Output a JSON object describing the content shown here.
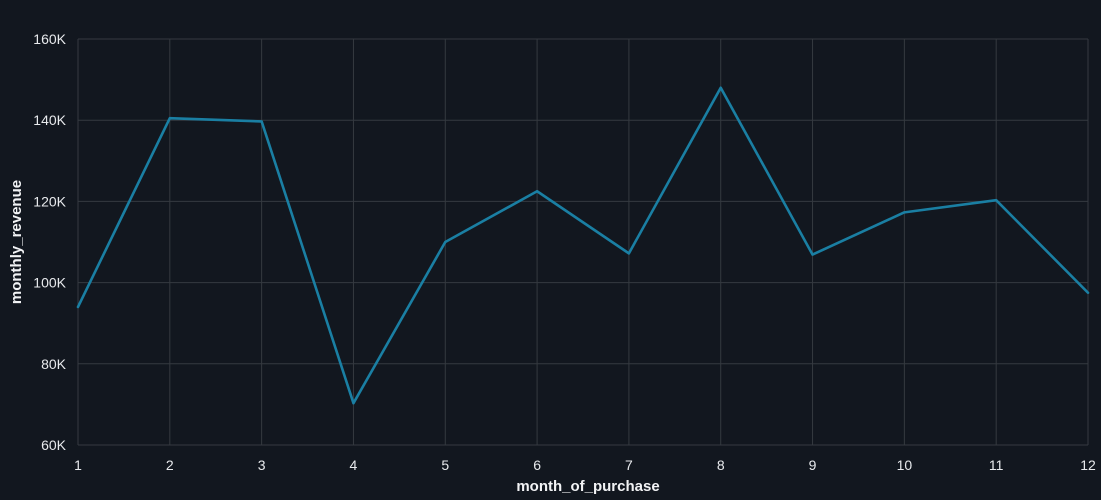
{
  "chart_data": {
    "type": "line",
    "xlabel": "month_of_purchase",
    "ylabel": "monthly_revenue",
    "x": [
      1,
      2,
      3,
      4,
      5,
      6,
      7,
      8,
      9,
      10,
      11,
      12
    ],
    "xlim": [
      1,
      12
    ],
    "ylim": [
      60000,
      160000
    ],
    "y_ticks": [
      60000,
      80000,
      100000,
      120000,
      140000,
      160000
    ],
    "y_tick_labels": [
      "60K",
      "80K",
      "100K",
      "120K",
      "140K",
      "160K"
    ],
    "x_tick_labels": [
      "1",
      "2",
      "3",
      "4",
      "5",
      "6",
      "7",
      "8",
      "9",
      "10",
      "11",
      "12"
    ],
    "grid": true,
    "series": [
      {
        "color": "#1a7fa3",
        "values": [
          94000,
          140500,
          139700,
          70300,
          110000,
          122500,
          107200,
          148000,
          106900,
          117300,
          120300,
          97500
        ]
      }
    ],
    "colors": {
      "background": "#12171f",
      "grid": "#353a40",
      "text": "#e8eaed"
    }
  }
}
